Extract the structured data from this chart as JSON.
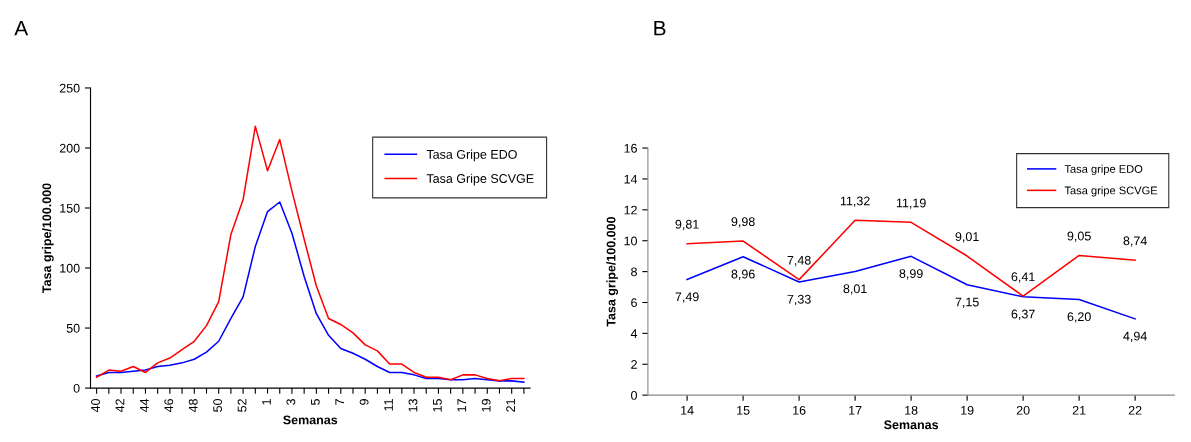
{
  "chart_data": [
    {
      "type": "line",
      "title": "A",
      "xlabel": "Semanas",
      "ylabel": "Tasa gripe/100.000",
      "categories": [
        "40",
        null,
        "42",
        null,
        "44",
        null,
        "46",
        null,
        "48",
        null,
        "50",
        null,
        "52",
        null,
        "1",
        null,
        "3",
        null,
        "5",
        null,
        "7",
        null,
        "9",
        null,
        "11",
        null,
        "13",
        null,
        "15",
        null,
        "17",
        null,
        "19",
        null,
        "21",
        null
      ],
      "series": [
        {
          "name": "Tasa Gripe EDO",
          "color": "#0000ff",
          "values": [
            10,
            13,
            13,
            14,
            15,
            18,
            19,
            21,
            24,
            30,
            39,
            58,
            76,
            118,
            147,
            155,
            129,
            93,
            62,
            44,
            33,
            29,
            24,
            18,
            13,
            13,
            11,
            8,
            8,
            7,
            7,
            8,
            7,
            6,
            6,
            5
          ]
        },
        {
          "name": "Tasa Gripe SCVGE",
          "color": "#ff0000",
          "values": [
            9,
            15,
            14,
            18,
            13,
            21,
            25,
            32,
            39,
            52,
            72,
            128,
            157,
            218,
            181,
            207,
            164,
            124,
            85,
            58,
            53,
            46,
            36,
            31,
            20,
            20,
            13,
            9,
            9,
            7,
            11,
            11,
            8,
            6,
            8,
            8
          ]
        }
      ],
      "ylim": [
        0,
        250
      ],
      "yticks": [
        0,
        50,
        100,
        150,
        200,
        250
      ],
      "grid": false,
      "legend": "top right"
    },
    {
      "type": "line",
      "title": "B",
      "xlabel": "Semanas",
      "ylabel": "Tasa gripe/100.000",
      "categories": [
        "14",
        "15",
        "16",
        "17",
        "18",
        "19",
        "20",
        "21",
        "22"
      ],
      "series": [
        {
          "name": "Tasa gripe EDO",
          "color": "#0000ff",
          "values": [
            7.49,
            8.96,
            7.33,
            8.01,
            8.99,
            7.15,
            6.37,
            6.2,
            4.94
          ],
          "value_labels": [
            "7,49",
            "8,96",
            "7,33",
            "8,01",
            "8,99",
            "7,15",
            "6,37",
            "6,20",
            "4,94"
          ]
        },
        {
          "name": "Tasa gripe SCVGE",
          "color": "#ff0000",
          "values": [
            9.81,
            9.98,
            7.48,
            11.32,
            11.19,
            9.01,
            6.41,
            9.05,
            8.74
          ],
          "value_labels": [
            "9,81",
            "9,98",
            "7,48",
            "11,32",
            "11,19",
            "9,01",
            "6,41",
            "9,05",
            "8,74"
          ]
        }
      ],
      "ylim": [
        0,
        16
      ],
      "yticks": [
        0,
        2,
        4,
        6,
        8,
        10,
        12,
        14,
        16
      ],
      "grid": false,
      "legend": "top right"
    }
  ]
}
